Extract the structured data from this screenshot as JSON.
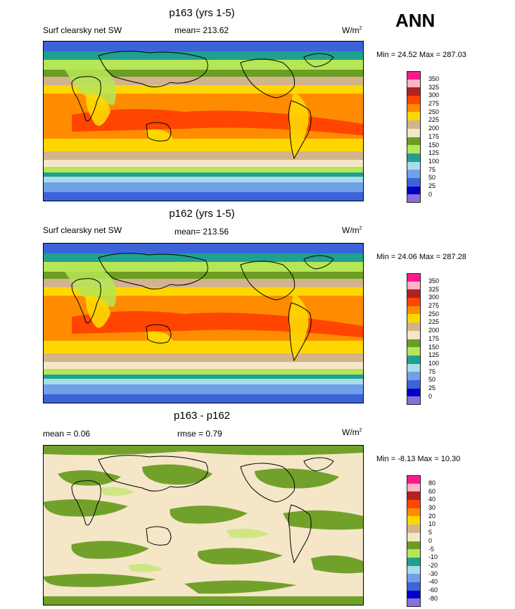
{
  "season": "ANN",
  "panels": [
    {
      "title": "p163 (yrs 1-5)",
      "left_label": "Surf clearsky net SW",
      "mean_label": "mean= 213.62",
      "units": "W/m",
      "units_exp": "2",
      "minmax": "Min =  24.52 Max = 287.03"
    },
    {
      "title": "p162 (yrs 1-5)",
      "left_label": "Surf clearsky net SW",
      "mean_label": "mean= 213.56",
      "units": "W/m",
      "units_exp": "2",
      "minmax": "Min =  24.06 Max = 287.28"
    },
    {
      "title": "p163 - p162",
      "left_label": "mean =   0.06",
      "mean_label": "rmse =   0.79",
      "units": "W/m",
      "units_exp": "2",
      "minmax": "Min =  -8.13 Max =  10.30"
    }
  ],
  "colorbar_abs": {
    "colors": [
      "#ff1a8c",
      "#ffb3c6",
      "#b22222",
      "#ff4500",
      "#ff8c00",
      "#ffd700",
      "#d2b48c",
      "#f5e6c8",
      "#6b9e23",
      "#b5e655",
      "#20a090",
      "#a8dce8",
      "#6fa0e8",
      "#3d63d9",
      "#0000c8",
      "#8a6fd9"
    ],
    "ticks": [
      "350",
      "325",
      "300",
      "275",
      "250",
      "225",
      "200",
      "175",
      "150",
      "125",
      "100",
      "75",
      "50",
      "25",
      "0"
    ]
  },
  "colorbar_diff": {
    "colors": [
      "#ff1a8c",
      "#ffb3c6",
      "#b22222",
      "#ff4500",
      "#ff8c00",
      "#ffd700",
      "#d2b48c",
      "#f5e6c8",
      "#6b9e23",
      "#b5e655",
      "#20a090",
      "#a8dce8",
      "#6fa0e8",
      "#3d63d9",
      "#0000c8",
      "#8a6fd9"
    ],
    "ticks": [
      "80",
      "60",
      "40",
      "30",
      "20",
      "10",
      "5",
      "0",
      "-5",
      "-10",
      "-20",
      "-30",
      "-40",
      "-60",
      "-80"
    ]
  }
}
